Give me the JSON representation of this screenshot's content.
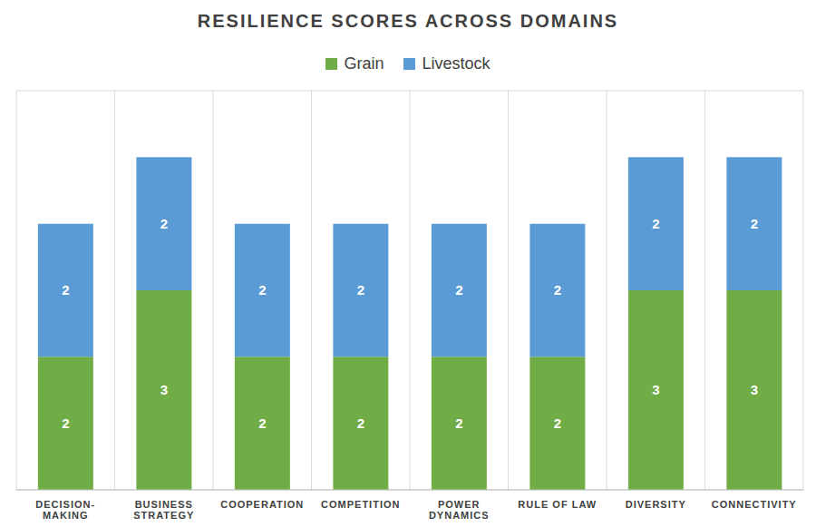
{
  "chart_data": {
    "type": "bar",
    "title": "RESILIENCE SCORES ACROSS DOMAINS",
    "categories": [
      "DECISION-MAKING",
      "BUSINESS STRATEGY",
      "COOPERATION",
      "COMPETITION",
      "POWER DYNAMICS",
      "RULE OF LAW",
      "DIVERSITY",
      "CONNECTIVITY"
    ],
    "series": [
      {
        "name": "Grain",
        "color": "#70ad47",
        "values": [
          2,
          3,
          2,
          2,
          2,
          2,
          3,
          3
        ]
      },
      {
        "name": "Livestock",
        "color": "#5b9bd5",
        "values": [
          2,
          2,
          2,
          2,
          2,
          2,
          2,
          2
        ]
      }
    ],
    "ylim": [
      0,
      6
    ],
    "yticks": [
      0,
      6
    ],
    "stacked": true,
    "data_labels": true,
    "legend": "top",
    "grid": true,
    "tick_labels": "x"
  }
}
